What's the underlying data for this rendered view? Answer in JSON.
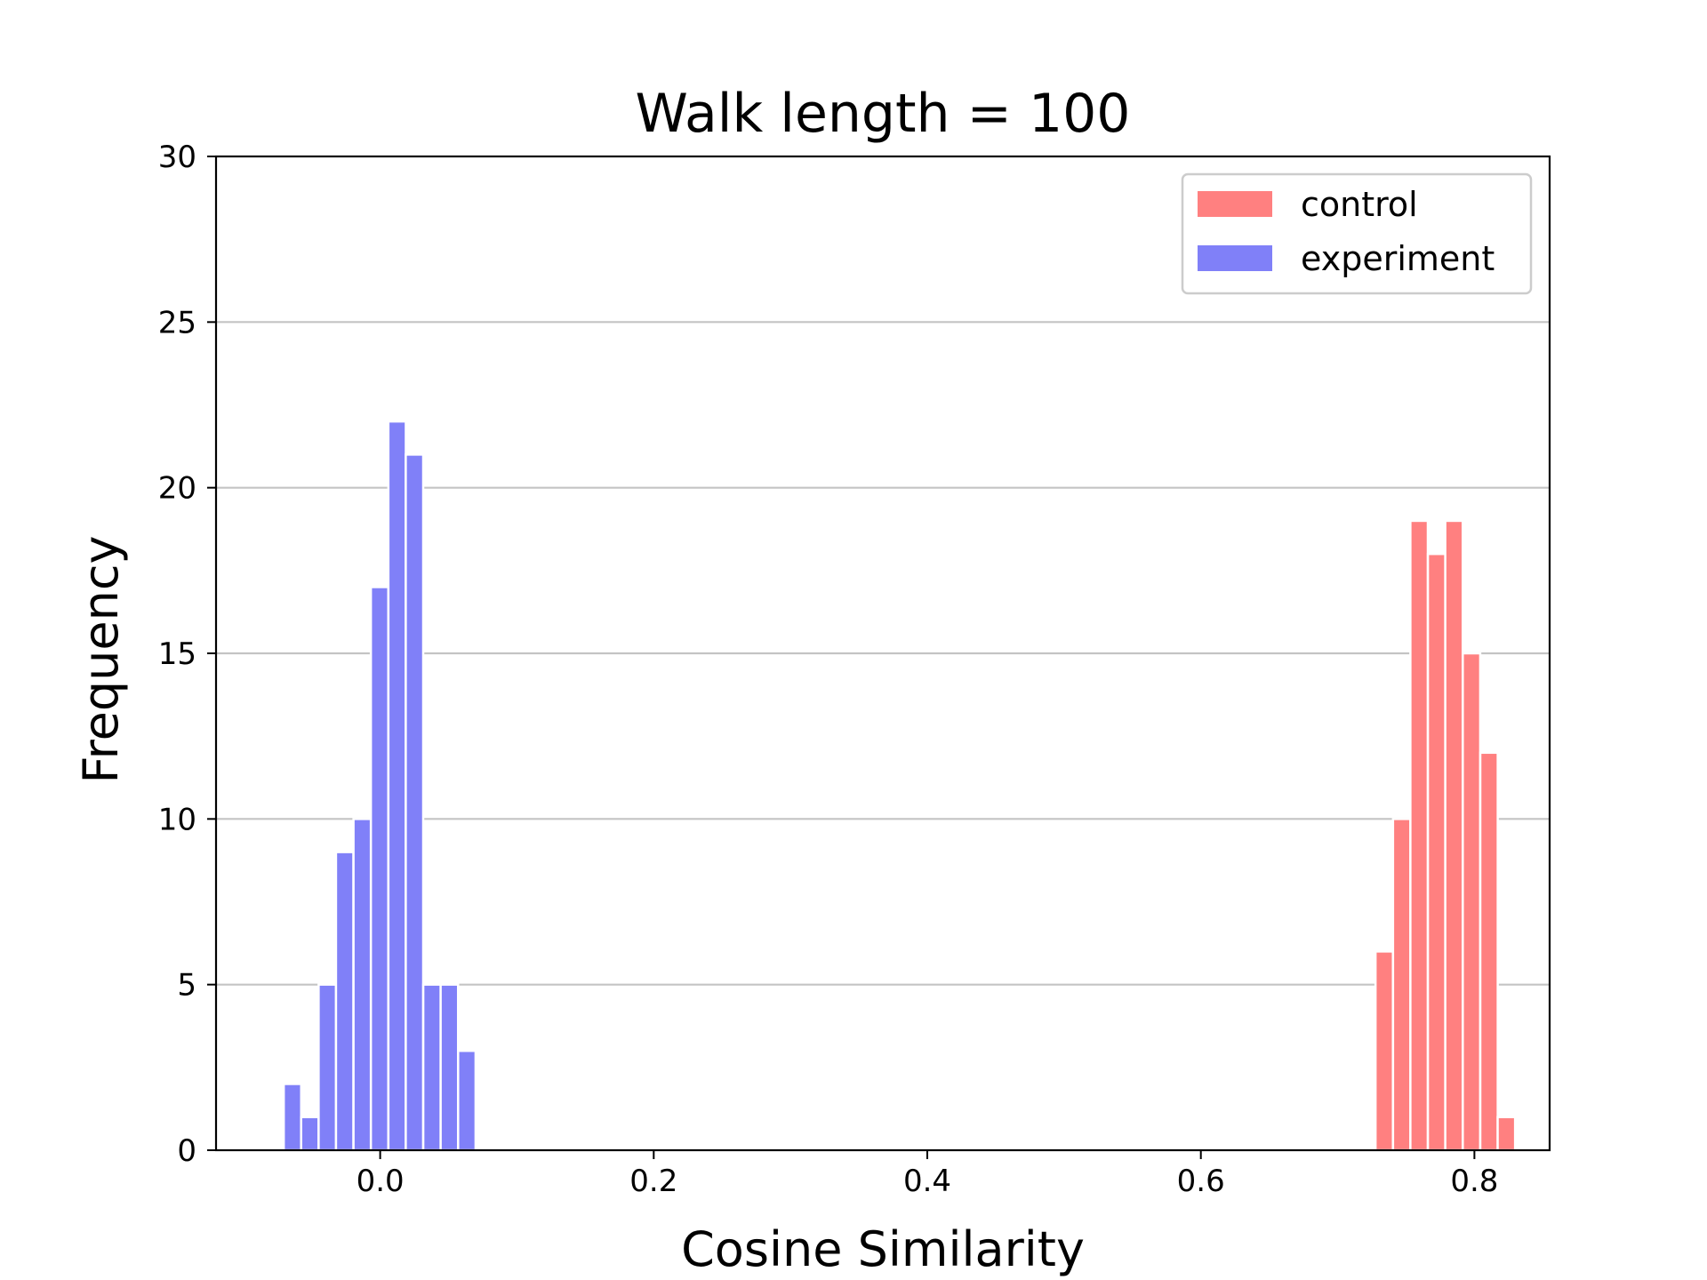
{
  "chart_data": {
    "type": "bar",
    "title": "Walk length = 100",
    "xlabel": "Cosine Similarity",
    "ylabel": "Frequency",
    "xlim": [
      -0.12,
      0.855
    ],
    "ylim": [
      0,
      30
    ],
    "xticks": [
      0.0,
      0.2,
      0.4,
      0.6,
      0.8
    ],
    "xtick_labels": [
      "0.0",
      "0.2",
      "0.4",
      "0.6",
      "0.8"
    ],
    "yticks": [
      0,
      5,
      10,
      15,
      20,
      25,
      30
    ],
    "ytick_labels": [
      "0",
      "5",
      "10",
      "15",
      "20",
      "25",
      "30"
    ],
    "grid": "horizontal",
    "legend_position": "upper right",
    "bin_width": 0.01275,
    "series": [
      {
        "name": "control",
        "color": "#ff8080",
        "bins": [
          {
            "x": 0.7277,
            "y": 6
          },
          {
            "x": 0.7405,
            "y": 10
          },
          {
            "x": 0.7532,
            "y": 19
          },
          {
            "x": 0.766,
            "y": 18
          },
          {
            "x": 0.7787,
            "y": 19
          },
          {
            "x": 0.7915,
            "y": 15
          },
          {
            "x": 0.8043,
            "y": 12
          },
          {
            "x": 0.817,
            "y": 1
          }
        ]
      },
      {
        "name": "experiment",
        "color": "#8080f8",
        "bins": [
          {
            "x": -0.0705,
            "y": 2
          },
          {
            "x": -0.0578,
            "y": 1
          },
          {
            "x": -0.045,
            "y": 5
          },
          {
            "x": -0.0323,
            "y": 9
          },
          {
            "x": -0.0195,
            "y": 10
          },
          {
            "x": -0.0068,
            "y": 17
          },
          {
            "x": 0.006,
            "y": 22
          },
          {
            "x": 0.0187,
            "y": 21
          },
          {
            "x": 0.0315,
            "y": 5
          },
          {
            "x": 0.0442,
            "y": 5
          },
          {
            "x": 0.057,
            "y": 3
          }
        ]
      }
    ]
  }
}
